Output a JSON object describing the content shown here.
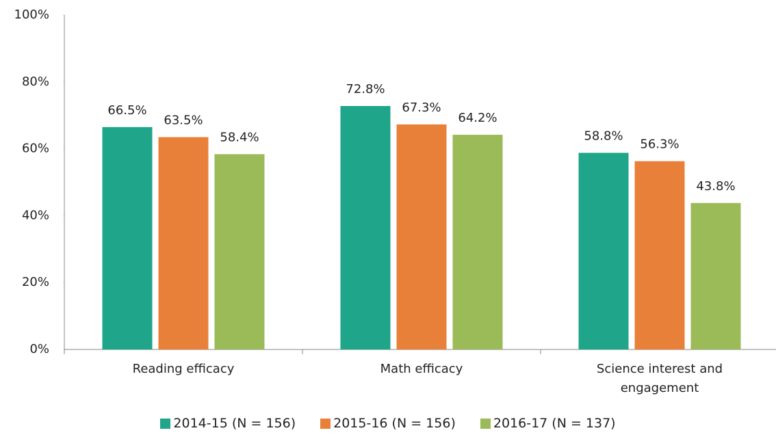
{
  "chart_data": {
    "type": "bar",
    "categories": [
      "Reading efficacy",
      "Math efficacy",
      "Science interest and engagement"
    ],
    "series": [
      {
        "name": "2014-15 (N = 156)",
        "color": "#1fa589",
        "values": [
          66.5,
          72.8,
          58.8
        ],
        "value_labels": [
          "66.5%",
          "72.8%",
          "58.8%"
        ]
      },
      {
        "name": "2015-16 (N = 156)",
        "color": "#e8803a",
        "values": [
          63.5,
          67.3,
          56.3
        ],
        "value_labels": [
          "63.5%",
          "67.3%",
          "56.3%"
        ]
      },
      {
        "name": "2016-17 (N = 137)",
        "color": "#9bbb59",
        "values": [
          58.4,
          64.2,
          43.8
        ],
        "value_labels": [
          "58.4%",
          "64.2%",
          "43.8%"
        ]
      }
    ],
    "ylim": [
      0,
      100
    ],
    "yticks": [
      {
        "value": 0,
        "label": "0%"
      },
      {
        "value": 20,
        "label": "20%"
      },
      {
        "value": 40,
        "label": "40%"
      },
      {
        "value": 60,
        "label": "60%"
      },
      {
        "value": 80,
        "label": "80%"
      },
      {
        "value": 100,
        "label": "100%"
      }
    ],
    "legend": "bottom"
  }
}
